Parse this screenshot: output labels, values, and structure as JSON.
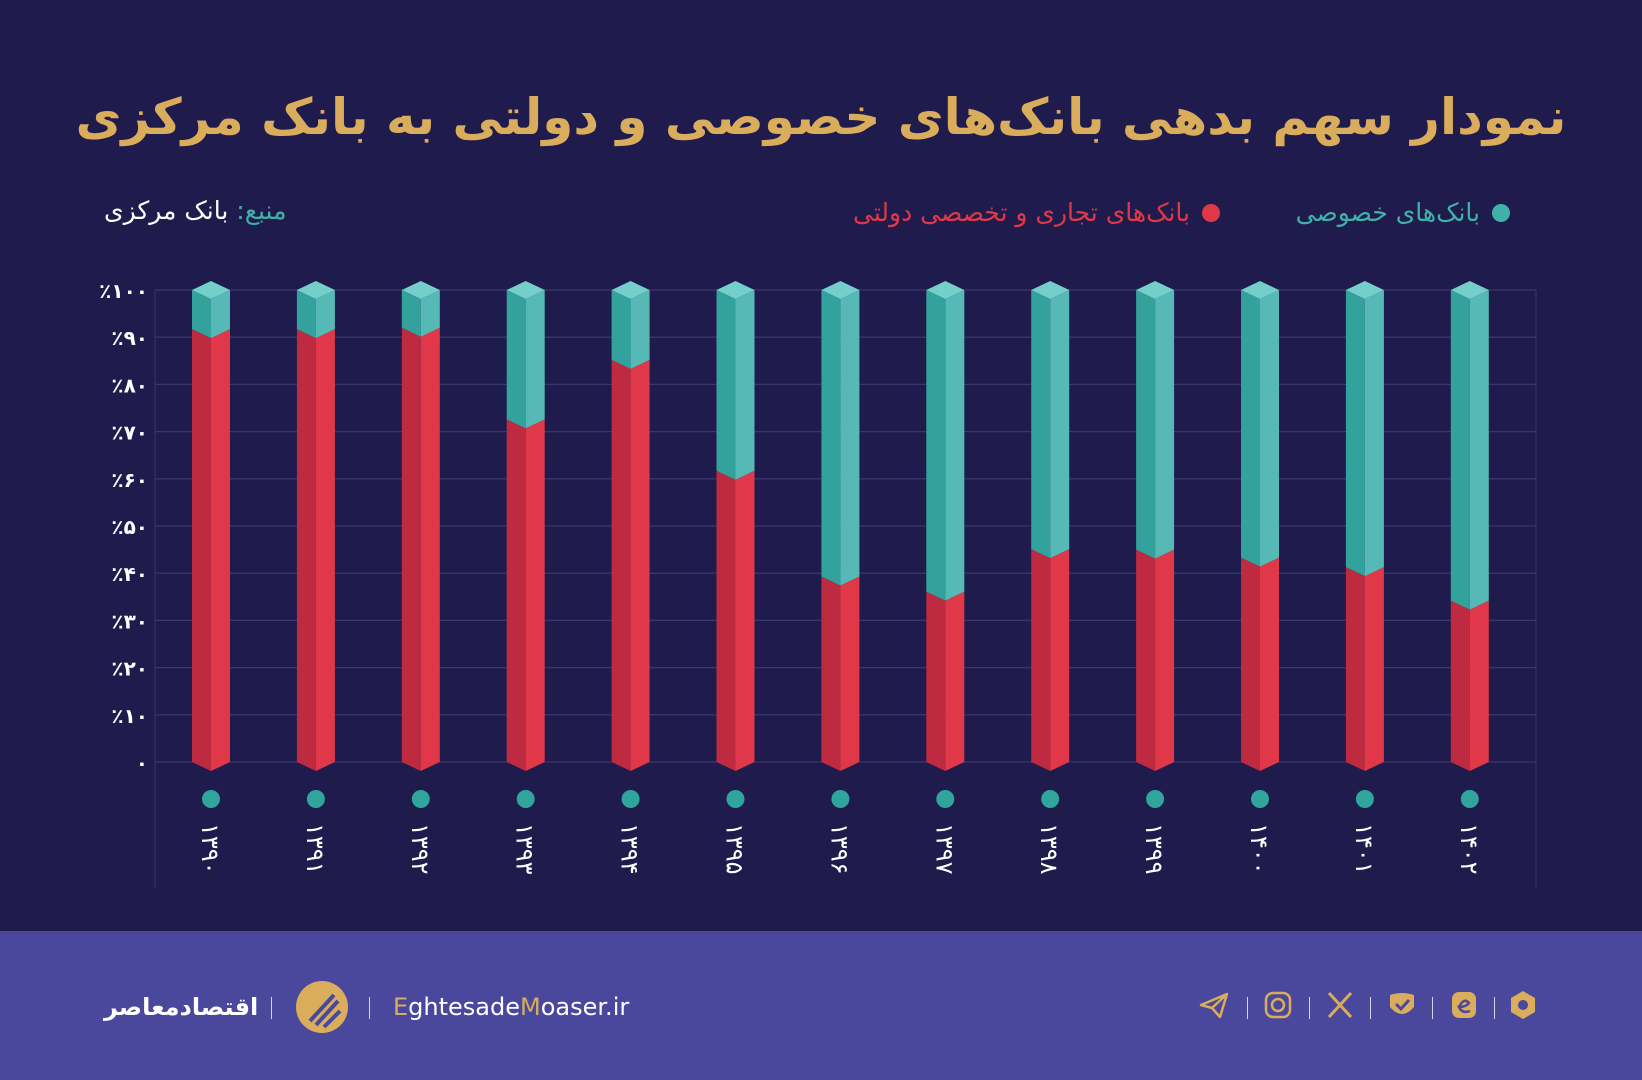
{
  "title": "نمودار سهم بدهی بانک‌های خصوصی و دولتی به بانک مرکزی",
  "source": {
    "label": "منبع:",
    "value": "بانک مرکزی"
  },
  "colors": {
    "background": "#1f1b4c",
    "private": "#3fb1a8",
    "state": "#e03848",
    "title": "#d9ad5b",
    "footer": "#4a489c"
  },
  "chart_data": {
    "type": "bar",
    "stacked": true,
    "title": "نمودار سهم بدهی بانک‌های خصوصی و دولتی به بانک مرکزی",
    "categories": [
      "۱۳۹۰",
      "۱۳۹۱",
      "۱۳۹۲",
      "۱۳۹۳",
      "۱۳۹۴",
      "۱۳۹۵",
      "۱۳۹۶",
      "۱۳۹۷",
      "۱۳۹۸",
      "۱۳۹۹",
      "۱۴۰۰",
      "۱۴۰۱",
      "۱۴۰۲"
    ],
    "series": [
      {
        "name": "بانک‌های تجاری و تخصصی دولتی",
        "color": "#e03848",
        "values": [
          91.7,
          91.7,
          92.0,
          72.6,
          85.2,
          61.7,
          39.3,
          36.1,
          45.1,
          45.0,
          43.3,
          41.3,
          34.2
        ]
      },
      {
        "name": "بانک‌های خصوصی",
        "color": "#3fb1a8",
        "values": [
          8.3,
          8.3,
          8.0,
          27.4,
          14.8,
          38.3,
          60.7,
          63.9,
          54.9,
          55.0,
          56.7,
          58.7,
          65.8
        ]
      }
    ],
    "ylim": [
      0,
      100
    ],
    "yticks": [
      "۰",
      "٪۱۰",
      "٪۲۰",
      "٪۳۰",
      "٪۴۰",
      "٪۵۰",
      "٪۶۰",
      "٪۷۰",
      "٪۸۰",
      "٪۹۰",
      "٪۱۰۰"
    ],
    "grid": true,
    "legend": "top"
  },
  "footer": {
    "brand_fa": "اقتصادمعاصر",
    "site_e": "E",
    "site_1": "ghtesade",
    "site_m": "M",
    "site_2": "oaser.ir",
    "social_icons": [
      "telegram-icon",
      "instagram-icon",
      "x-icon",
      "eitaa-icon",
      "rubika-icon",
      "bale-icon"
    ]
  }
}
